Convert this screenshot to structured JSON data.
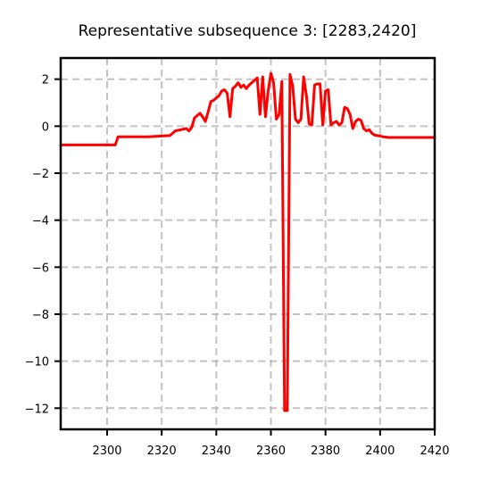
{
  "chart_data": {
    "type": "line",
    "title": "Representative subsequence 3: [2283,2420]",
    "xlabel": "",
    "ylabel": "",
    "xlim": [
      2283,
      2420
    ],
    "ylim": [
      -12.9,
      2.9
    ],
    "xticks": [
      2300,
      2320,
      2340,
      2360,
      2380,
      2400,
      2420
    ],
    "yticks": [
      2,
      0,
      -2,
      -4,
      -6,
      -8,
      -10,
      -12
    ],
    "ytick_labels": [
      "2",
      "0",
      "−2",
      "−4",
      "−6",
      "−8",
      "−10",
      "−12"
    ],
    "grid": true,
    "series": [
      {
        "color": "#ff0000",
        "x": [
          2283,
          2290,
          2295,
          2300,
          2303,
          2304,
          2306,
          2310,
          2315,
          2320,
          2323,
          2325,
          2327,
          2329,
          2330,
          2331,
          2332,
          2333,
          2334,
          2335,
          2336,
          2337,
          2338,
          2339,
          2340,
          2341,
          2342,
          2343,
          2344,
          2345,
          2346,
          2347,
          2348,
          2349,
          2350,
          2351,
          2352,
          2353,
          2354,
          2355,
          2356,
          2357,
          2358,
          2359,
          2360,
          2361,
          2362,
          2363,
          2364,
          2365,
          2366,
          2367,
          2368,
          2369,
          2370,
          2371,
          2372,
          2373,
          2374,
          2375,
          2376,
          2377,
          2378,
          2379,
          2380,
          2381,
          2382,
          2383,
          2384,
          2385,
          2386,
          2387,
          2388,
          2389,
          2390,
          2391,
          2392,
          2393,
          2394,
          2395,
          2396,
          2397,
          2398,
          2399,
          2400,
          2401,
          2402,
          2403,
          2404,
          2405,
          2406,
          2407,
          2408,
          2410,
          2412,
          2414,
          2416,
          2418,
          2420
        ],
        "y": [
          -0.8,
          -0.8,
          -0.8,
          -0.8,
          -0.8,
          -0.45,
          -0.45,
          -0.45,
          -0.45,
          -0.42,
          -0.4,
          -0.2,
          -0.15,
          -0.1,
          -0.2,
          -0.05,
          0.35,
          0.45,
          0.55,
          0.4,
          0.2,
          0.6,
          1.05,
          1.1,
          1.2,
          1.3,
          1.5,
          1.55,
          1.4,
          0.4,
          1.6,
          1.7,
          1.85,
          1.65,
          1.75,
          1.6,
          1.75,
          1.85,
          1.95,
          2.05,
          0.5,
          2.1,
          0.4,
          1.5,
          2.25,
          1.85,
          0.3,
          0.5,
          1.9,
          -12.1,
          -12.1,
          2.2,
          1.7,
          0.3,
          0.15,
          0.3,
          2.1,
          1.3,
          0.1,
          0.05,
          1.75,
          1.8,
          1.8,
          0.05,
          1.5,
          1.55,
          0.05,
          0.15,
          0.2,
          0.05,
          0.15,
          0.8,
          0.75,
          0.5,
          -0.1,
          0.2,
          0.3,
          0.25,
          -0.1,
          -0.2,
          -0.15,
          -0.3,
          -0.38,
          -0.4,
          -0.42,
          -0.45,
          -0.46,
          -0.48,
          -0.48,
          -0.48,
          -0.48,
          -0.48,
          -0.48,
          -0.48,
          -0.48,
          -0.48,
          -0.48,
          -0.48,
          -0.48
        ]
      }
    ]
  }
}
